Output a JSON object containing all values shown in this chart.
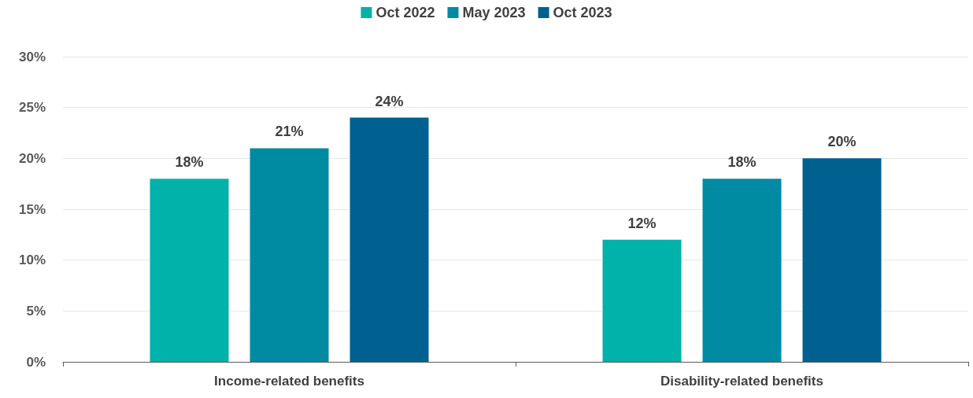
{
  "chart_data": {
    "type": "bar",
    "categories": [
      "Income-related benefits",
      "Disability-related benefits"
    ],
    "series": [
      {
        "name": "Oct 2022",
        "color": "#00b2a9",
        "values": [
          18,
          12
        ],
        "value_labels": [
          "18%",
          "12%"
        ]
      },
      {
        "name": "May 2023",
        "color": "#008ba3",
        "values": [
          21,
          18
        ],
        "value_labels": [
          "21%",
          "18%"
        ]
      },
      {
        "name": "Oct 2023",
        "color": "#006090",
        "values": [
          24,
          20
        ],
        "value_labels": [
          "24%",
          "20%"
        ]
      }
    ],
    "ylim": [
      0,
      30
    ],
    "yticks": [
      {
        "value": 0,
        "label": "0%"
      },
      {
        "value": 5,
        "label": "5%"
      },
      {
        "value": 10,
        "label": "10%"
      },
      {
        "value": 15,
        "label": "15%"
      },
      {
        "value": 20,
        "label": "20%"
      },
      {
        "value": 25,
        "label": "25%"
      },
      {
        "value": 30,
        "label": "30%"
      }
    ],
    "grid": "y",
    "legend": "top"
  }
}
